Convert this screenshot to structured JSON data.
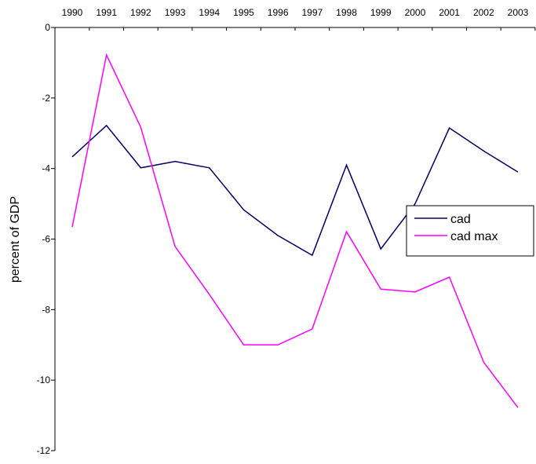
{
  "chart_data": {
    "type": "line",
    "y_label": "percent of GDP",
    "categories": [
      "1990",
      "1991",
      "1992",
      "1993",
      "1994",
      "1995",
      "1996",
      "1997",
      "1998",
      "1999",
      "2000",
      "2001",
      "2002",
      "2003"
    ],
    "series": [
      {
        "name": "cad",
        "color": "#000066",
        "values": [
          -3.67,
          -2.78,
          -3.98,
          -3.8,
          -3.98,
          -5.17,
          -5.9,
          -6.46,
          -3.9,
          -6.28,
          -5.0,
          -2.85,
          -3.5,
          -4.1
        ]
      },
      {
        "name": "cad max",
        "color": "#ff00ff",
        "values": [
          -5.66,
          -0.78,
          -2.83,
          -6.21,
          -7.57,
          -9.0,
          -9.0,
          -8.55,
          -5.79,
          -7.42,
          -7.5,
          -7.08,
          -9.49,
          -10.78
        ]
      }
    ],
    "ylim": [
      -12,
      0
    ],
    "yticks": [
      0,
      -2,
      -4,
      -6,
      -8,
      -10,
      -12
    ],
    "legend": "right"
  }
}
